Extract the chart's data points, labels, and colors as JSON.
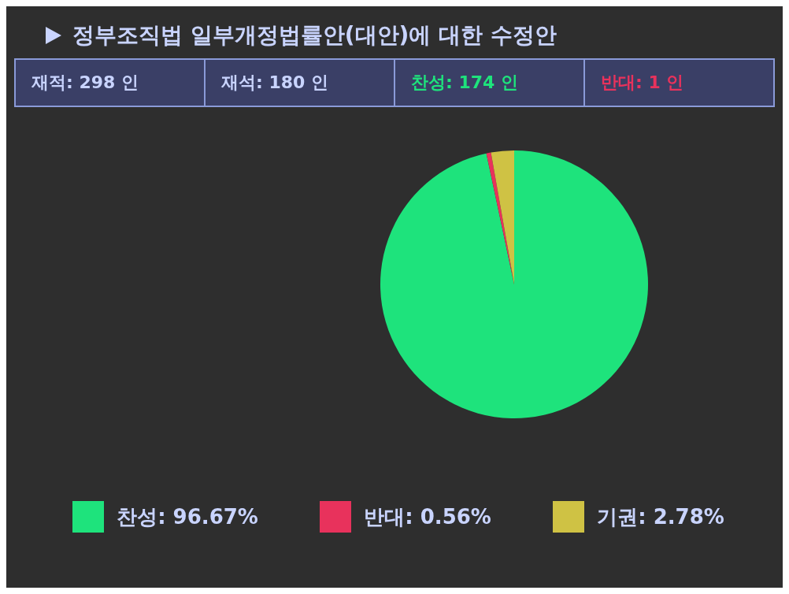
{
  "chart_data": {
    "type": "pie",
    "title": "정부조직법 일부개정법률안(대안)에 대한 수정안",
    "annotations": [
      "재적: 298 인",
      "재석: 180 인",
      "찬성: 174 인",
      "반대: 1 인"
    ],
    "categories": [
      "찬성",
      "반대",
      "기권"
    ],
    "values": [
      96.67,
      0.56,
      2.78
    ],
    "value_labels": [
      ": 96.67%",
      ": 0.56%",
      ": 2.78%"
    ],
    "colors": [
      "#1ee37c",
      "#e8325c",
      "#cfc244"
    ],
    "legend": "bottom"
  }
}
